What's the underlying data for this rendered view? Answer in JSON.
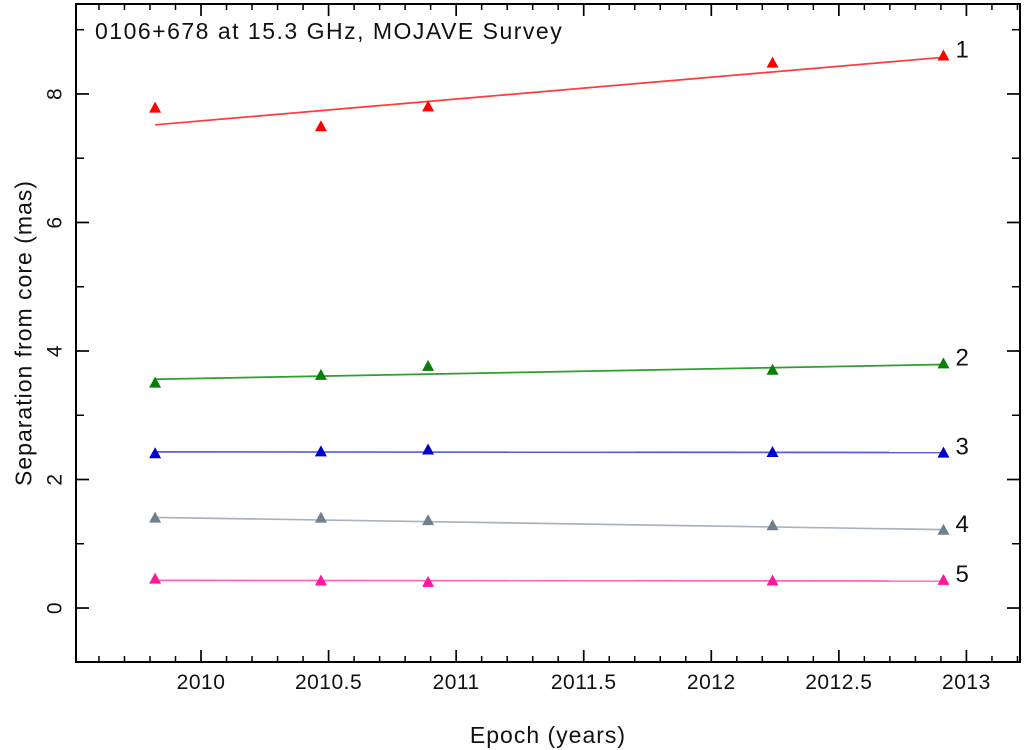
{
  "chart_data": {
    "type": "scatter",
    "title": "0106+678 at 15.3 GHz, MOJAVE Survey",
    "xlabel": "Epoch (years)",
    "ylabel": "Separation from core (mas)",
    "xlim": [
      2009.51,
      2013.21
    ],
    "ylim": [
      -0.84,
      9.4
    ],
    "grid": false,
    "x_major_ticks": [
      2010,
      2010.5,
      2011,
      2011.5,
      2012,
      2012.5,
      2013
    ],
    "x_tick_labels": [
      "2010",
      "2010.5",
      "2011",
      "2011.5",
      "2012",
      "2012.5",
      "2013"
    ],
    "x_minor_step": 0.1,
    "y_major_ticks": [
      0,
      2,
      4,
      6,
      8
    ],
    "y_tick_labels": [
      "0",
      "2",
      "4",
      "6",
      "8"
    ],
    "y_minor_ticks": [
      1,
      3,
      5,
      7,
      9
    ],
    "legend_position": "labels-right-of-last-point",
    "x": [
      2009.82,
      2010.47,
      2010.89,
      2012.24,
      2012.91
    ],
    "series": [
      {
        "name": "1",
        "values": [
          7.78,
          7.49,
          7.8,
          8.48,
          8.59
        ],
        "fit_line": [
          7.52,
          8.57
        ],
        "marker": "filled-triangle-up",
        "marker_color": "#ff0000",
        "line_color": "#ff3b3b",
        "label_color": "#ff5555"
      },
      {
        "name": "2",
        "values": [
          3.5,
          3.62,
          3.76,
          3.7,
          3.8
        ],
        "fit_line": [
          3.56,
          3.79
        ],
        "marker": "filled-triangle-up",
        "marker_color": "#087f08",
        "line_color": "#2f9e2f",
        "label_color": "#85bb85"
      },
      {
        "name": "3",
        "values": [
          2.4,
          2.43,
          2.46,
          2.42,
          2.41
        ],
        "fit_line": [
          2.43,
          2.42
        ],
        "marker": "filled-triangle-up",
        "marker_color": "#0000cd",
        "line_color": "#5a5ae0",
        "label_color": "#9595d6"
      },
      {
        "name": "4",
        "values": [
          1.4,
          1.4,
          1.36,
          1.28,
          1.21
        ],
        "fit_line": [
          1.41,
          1.22
        ],
        "marker": "filled-triangle-up",
        "marker_color": "#70808f",
        "line_color": "#a9b3bf",
        "label_color": "#c9ced4"
      },
      {
        "name": "5",
        "values": [
          0.45,
          0.42,
          0.4,
          0.42,
          0.43
        ],
        "fit_line": [
          0.43,
          0.42
        ],
        "marker": "filled-triangle-up",
        "marker_color": "#ff17a0",
        "line_color": "#ff63bb",
        "label_color": "#ff8ac8"
      }
    ]
  }
}
